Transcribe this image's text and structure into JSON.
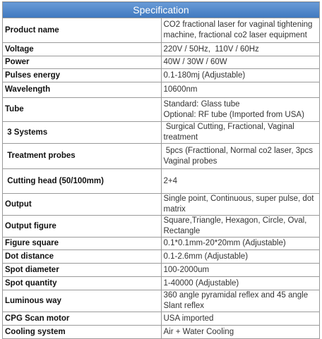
{
  "table": {
    "header": "Specification",
    "rows": [
      [
        "Product name",
        "CO2 fractional laser for vaginal tightening machine, fractional co2 laser equipment"
      ],
      [
        "Voltage",
        "220V / 50Hz,  110V / 60Hz"
      ],
      [
        "Power",
        "40W / 30W / 60W"
      ],
      [
        "Pulses energy",
        "0.1-180mj (Adjustable)"
      ],
      [
        "Wavelength",
        "10600nm"
      ],
      [
        "Tube",
        [
          "Standard: Glass tube",
          "Optional: RF tube (Imported from USA)"
        ]
      ],
      [
        " 3 Systems",
        " Surgical Cutting, Fractional, Vaginal treatment"
      ],
      [
        " Treatment probes",
        " 5pcs (Fracttional, Normal co2 laser, 3pcs Vaginal probes"
      ],
      [
        " Cutting head (50/100mm)",
        "2+4"
      ],
      [
        "Output",
        "Single point, Continuous, super pulse, dot matrix"
      ],
      [
        "Output figure",
        "Square,Triangle, Hexagon, Circle, Oval, Rectangle"
      ],
      [
        "Figure square",
        "0.1*0.1mm-20*20mm (Adjustable)"
      ],
      [
        "Dot distance",
        "0.1-2.6mm (Adjustable)"
      ],
      [
        "Spot diameter",
        "100-2000um"
      ],
      [
        "Spot quantity",
        "1-40000 (Adjustable)"
      ],
      [
        "Luminous way",
        "360 angle pyramidal reflex and 45 angle Slant reflex"
      ],
      [
        "CPG Scan motor",
        "USA imported"
      ],
      [
        "Cooling system",
        "Air + Water Cooling"
      ]
    ]
  }
}
